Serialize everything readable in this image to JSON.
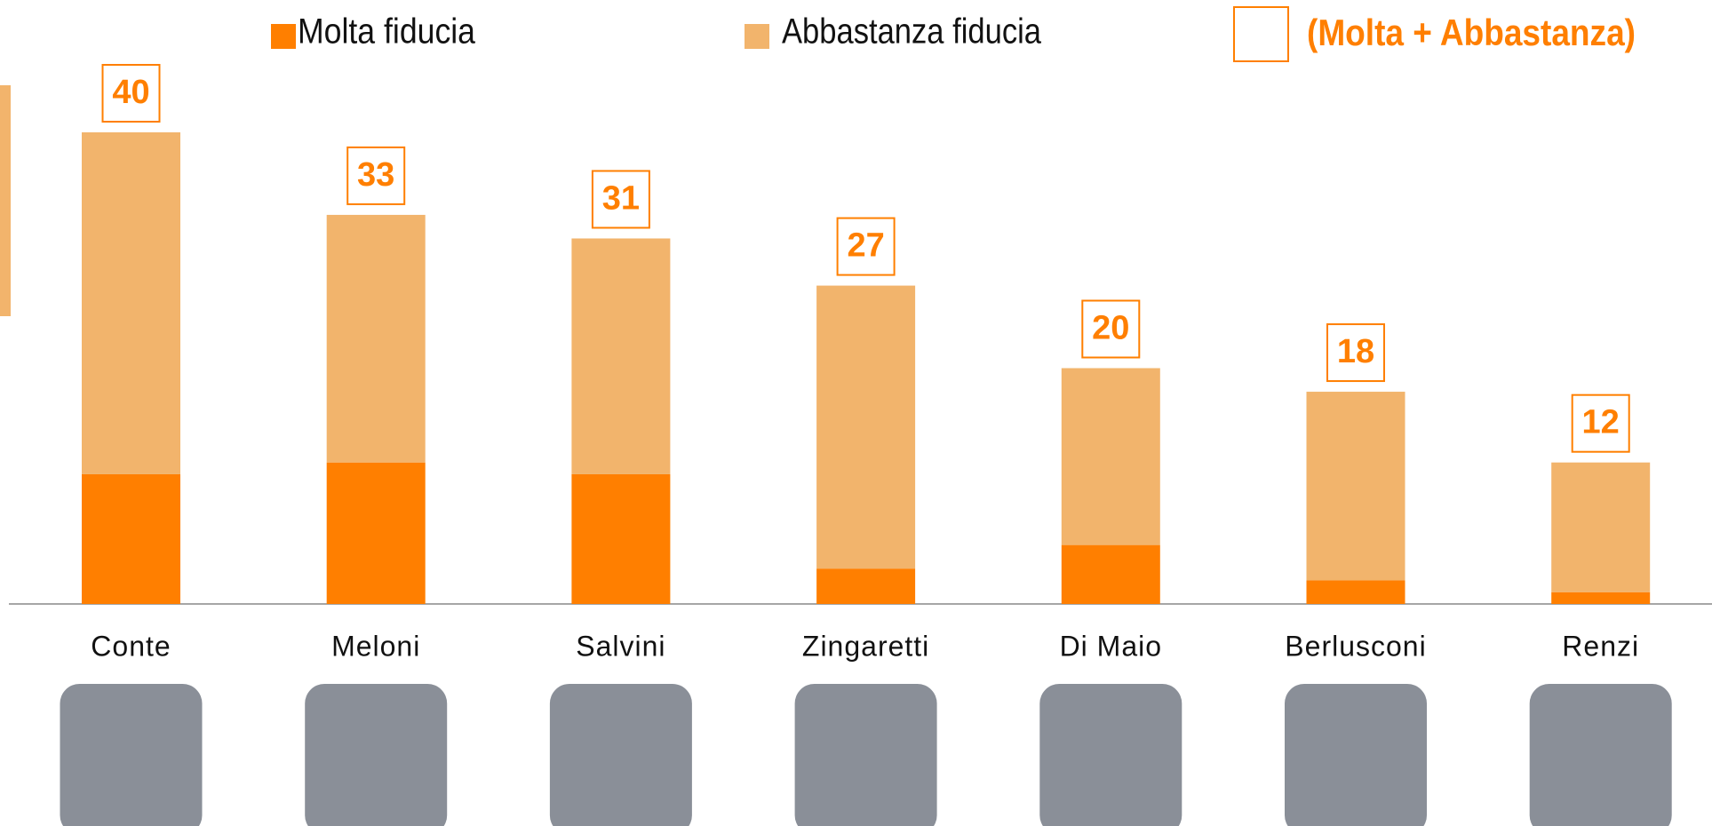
{
  "chart_data": {
    "type": "stacked_bar",
    "categories": [
      "Conte",
      "Meloni",
      "Salvini",
      "Zingaretti",
      "Di Maio",
      "Berlusconi",
      "Renzi"
    ],
    "series": [
      {
        "name": "Molta fiducia",
        "color": "#ff7f00",
        "values": [
          11,
          12,
          11,
          3,
          5,
          2,
          1
        ]
      },
      {
        "name": "Abbastanza fiducia",
        "color": "#f2b46c",
        "values": [
          29,
          21,
          20,
          24,
          15,
          16,
          11
        ]
      }
    ],
    "totals_name": "(Molta + Abbastanza)",
    "totals_color": "#ff7f00",
    "totals": [
      40,
      33,
      31,
      27,
      20,
      18,
      12
    ],
    "ylim": [
      0,
      40
    ]
  }
}
